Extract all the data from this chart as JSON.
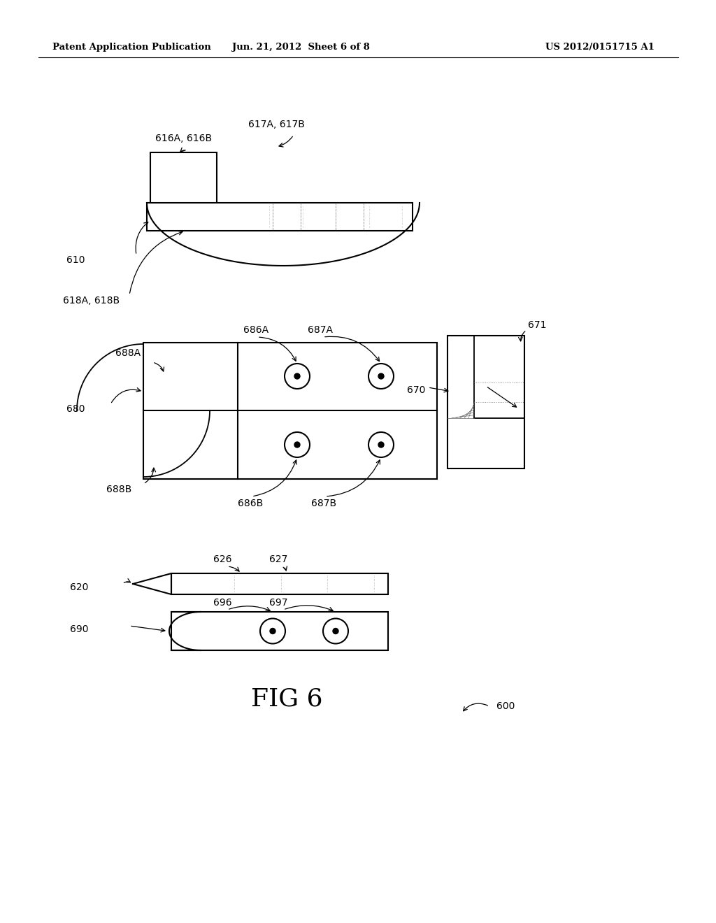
{
  "bg_color": "#ffffff",
  "header_left": "Patent Application Publication",
  "header_center": "Jun. 21, 2012  Sheet 6 of 8",
  "header_right": "US 2012/0151715 A1",
  "fig_label": "FIG 6",
  "fig_num": "600"
}
